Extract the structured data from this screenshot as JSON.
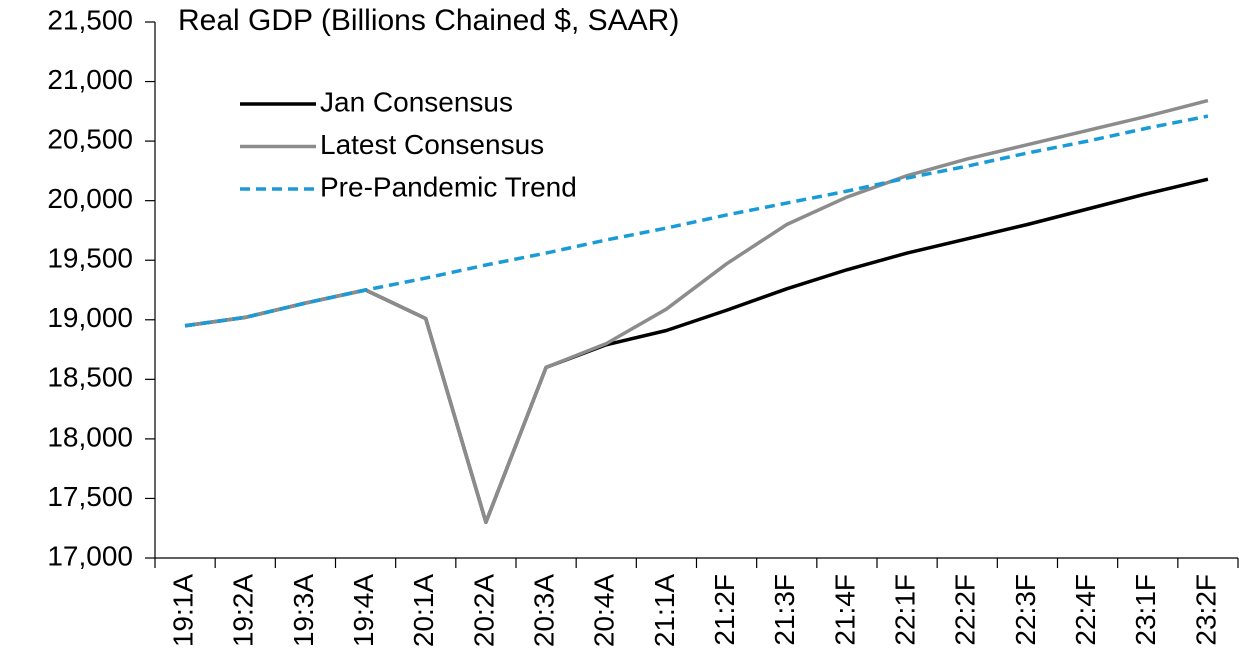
{
  "chart_data": {
    "type": "line",
    "title": "Real GDP (Billions Chained $, SAAR)",
    "categories": [
      "19:1A",
      "19:2A",
      "19:3A",
      "19:4A",
      "20:1A",
      "20:2A",
      "20:3A",
      "20:4A",
      "21:1A",
      "21:2F",
      "21:3F",
      "21:4F",
      "22:1F",
      "22:2F",
      "22:3F",
      "22:4F",
      "23:1F",
      "23:2F"
    ],
    "series": [
      {
        "name": "Jan Consensus",
        "color": "#000000",
        "dash": false,
        "values": [
          18950,
          19020,
          19140,
          19250,
          19010,
          17300,
          18600,
          18790,
          18910,
          19080,
          19260,
          19420,
          19560,
          19680,
          19800,
          19930,
          20060,
          20180
        ]
      },
      {
        "name": "Latest Consensus",
        "color": "#8c8c8c",
        "dash": false,
        "values": [
          18950,
          19020,
          19140,
          19250,
          19010,
          17300,
          18600,
          18800,
          19090,
          19470,
          19800,
          20030,
          20210,
          20350,
          20470,
          20590,
          20710,
          20840
        ]
      },
      {
        "name": "Pre-Pandemic Trend",
        "color": "#1a9bd7",
        "dash": true,
        "values": [
          18950,
          19020,
          19140,
          19250,
          19350,
          19460,
          19560,
          19670,
          19770,
          19880,
          19980,
          20080,
          20190,
          20290,
          20400,
          20500,
          20610,
          20710
        ]
      }
    ],
    "ylim": [
      17000,
      21500
    ],
    "yticks": [
      {
        "value": 17000,
        "label": "17,000"
      },
      {
        "value": 17500,
        "label": "17,500"
      },
      {
        "value": 18000,
        "label": "18,000"
      },
      {
        "value": 18500,
        "label": "18,500"
      },
      {
        "value": 19000,
        "label": "19,000"
      },
      {
        "value": 19500,
        "label": "19,500"
      },
      {
        "value": 20000,
        "label": "20,000"
      },
      {
        "value": 20500,
        "label": "20,500"
      },
      {
        "value": 21000,
        "label": "21,000"
      },
      {
        "value": 21500,
        "label": "21,500"
      }
    ],
    "grid": false,
    "legend": "upper left"
  }
}
